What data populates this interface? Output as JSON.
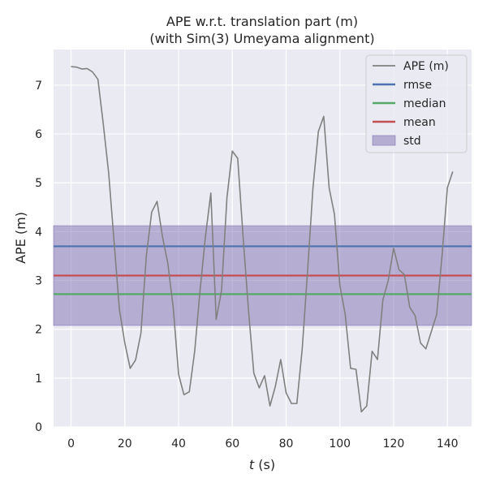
{
  "chart_data": {
    "type": "line",
    "title_line1": "APE w.r.t. translation part (m)",
    "title_line2": "(with Sim(3) Umeyama alignment)",
    "xlabel_var": "t",
    "xlabel_unit": " (s)",
    "ylabel": "APE (m)",
    "xlim": [
      -6.5,
      149
    ],
    "ylim": [
      0,
      7.73
    ],
    "xticks": [
      0,
      20,
      40,
      60,
      80,
      100,
      120,
      140
    ],
    "yticks": [
      0,
      1,
      2,
      3,
      4,
      5,
      6,
      7
    ],
    "grid": true,
    "legend_position": "top-right",
    "colors": {
      "background": "#eaeaf2",
      "grid": "#ffffff",
      "ape": "#808080",
      "rmse": "#4c72b0",
      "median": "#55a868",
      "mean": "#c44e52",
      "std": "#8172b2"
    },
    "stats": {
      "rmse": 3.7,
      "median": 2.72,
      "mean": 3.1,
      "std": 1.02
    },
    "legend": [
      {
        "key": "ape",
        "label": "APE (m)",
        "kind": "line"
      },
      {
        "key": "rmse",
        "label": "rmse",
        "kind": "line"
      },
      {
        "key": "median",
        "label": "median",
        "kind": "line"
      },
      {
        "key": "mean",
        "label": "mean",
        "kind": "line"
      },
      {
        "key": "std",
        "label": "std",
        "kind": "patch"
      }
    ],
    "series": [
      {
        "key": "ape",
        "x": [
          0,
          2,
          4,
          6,
          8,
          10,
          12,
          14,
          16,
          18,
          20,
          22,
          24,
          26,
          28,
          30,
          32,
          34,
          36,
          38,
          40,
          42,
          44,
          46,
          48,
          50,
          52,
          54,
          56,
          58,
          60,
          62,
          64,
          66,
          68,
          70,
          72,
          74,
          76,
          78,
          80,
          82,
          84,
          86,
          88,
          90,
          92,
          94,
          96,
          98,
          100,
          102,
          104,
          106,
          108,
          110,
          112,
          114,
          116,
          118,
          120,
          122,
          124,
          126,
          128,
          130,
          132,
          134,
          136,
          138,
          140,
          142
        ],
        "y": [
          7.38,
          7.37,
          7.33,
          7.34,
          7.27,
          7.12,
          6.2,
          5.2,
          3.8,
          2.4,
          1.72,
          1.2,
          1.37,
          1.92,
          3.5,
          4.4,
          4.62,
          3.9,
          3.35,
          2.45,
          1.08,
          0.66,
          0.72,
          1.55,
          2.8,
          3.9,
          4.79,
          2.2,
          2.8,
          4.7,
          5.65,
          5.5,
          3.9,
          2.4,
          1.1,
          0.8,
          1.05,
          0.43,
          0.83,
          1.38,
          0.7,
          0.48,
          0.48,
          1.6,
          3.2,
          4.9,
          6.05,
          6.36,
          4.9,
          4.35,
          2.9,
          2.3,
          1.2,
          1.18,
          0.31,
          0.43,
          1.55,
          1.38,
          2.6,
          3.0,
          3.66,
          3.22,
          3.12,
          2.45,
          2.28,
          1.72,
          1.6,
          1.95,
          2.3,
          3.5,
          4.9,
          5.23
        ]
      }
    ]
  }
}
